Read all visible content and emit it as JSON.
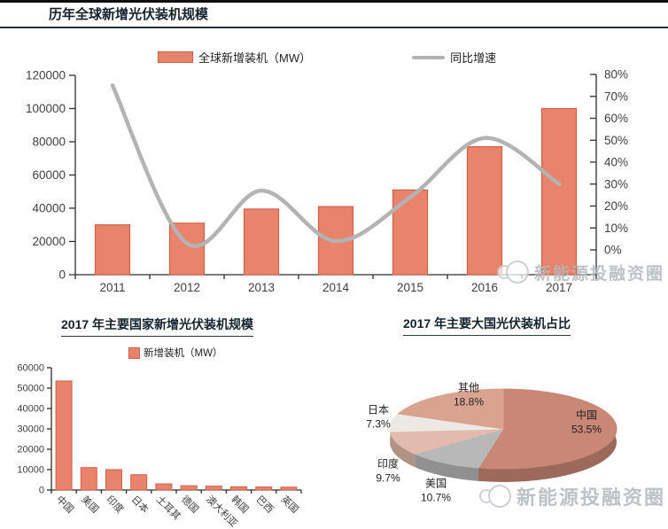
{
  "watermark": {
    "text": "新能源投融资圈"
  },
  "chart_data": [
    {
      "type": "combo-bar-line",
      "title": "历年全球新增光伏装机规模",
      "categories": [
        "2011",
        "2012",
        "2013",
        "2014",
        "2015",
        "2016",
        "2017"
      ],
      "series": [
        {
          "name": "全球新增装机（MW）",
          "type": "bar",
          "axis": "left",
          "values": [
            30000,
            31000,
            39500,
            41000,
            51000,
            77000,
            100000
          ]
        },
        {
          "name": "同比增速",
          "type": "line",
          "axis": "right",
          "values": [
            75,
            3,
            27,
            4,
            24,
            51,
            30
          ]
        }
      ],
      "left_axis": {
        "min": 0,
        "max": 120000,
        "step": 20000,
        "tick_labels": [
          "0",
          "20000",
          "40000",
          "60000",
          "80000",
          "100000",
          "120000"
        ]
      },
      "right_axis": {
        "min": 0,
        "max": 80,
        "step": 10,
        "unit": "%",
        "tick_labels": [
          "0%",
          "10%",
          "20%",
          "30%",
          "40%",
          "50%",
          "60%",
          "70%",
          "80%"
        ]
      },
      "bar_color": "#E8836C",
      "bar_border": "#D0604A",
      "line_color": "#B3B3B3"
    },
    {
      "type": "bar",
      "title": "2017 年主要国家新增光伏装机规模",
      "legend": "新增装机（MW）",
      "categories": [
        "中国",
        "美国",
        "印度",
        "日本",
        "土耳其",
        "德国",
        "澳大利亚",
        "韩国",
        "巴西",
        "英国"
      ],
      "values": [
        53500,
        11000,
        10000,
        7500,
        3000,
        2100,
        1900,
        1600,
        1500,
        1400
      ],
      "y_axis": {
        "min": 0,
        "max": 60000,
        "step": 10000,
        "tick_labels": [
          "0",
          "10000",
          "20000",
          "30000",
          "40000",
          "50000",
          "60000"
        ]
      },
      "bar_color": "#E8836C",
      "bar_border": "#D0604A"
    },
    {
      "type": "pie",
      "title": "2017 年主要大国光伏装机占比",
      "slices": [
        {
          "label": "中国",
          "value": 53.5,
          "pct": "53.5%",
          "color": "#C98775"
        },
        {
          "label": "美国",
          "value": 10.7,
          "pct": "10.7%",
          "color": "#B8B8B8"
        },
        {
          "label": "印度",
          "value": 9.7,
          "pct": "9.7%",
          "color": "#E2BBAC"
        },
        {
          "label": "日本",
          "value": 7.3,
          "pct": "7.3%",
          "color": "#ECE9E5"
        },
        {
          "label": "其他",
          "value": 18.8,
          "pct": "18.8%",
          "color": "#D9A390"
        }
      ]
    }
  ]
}
